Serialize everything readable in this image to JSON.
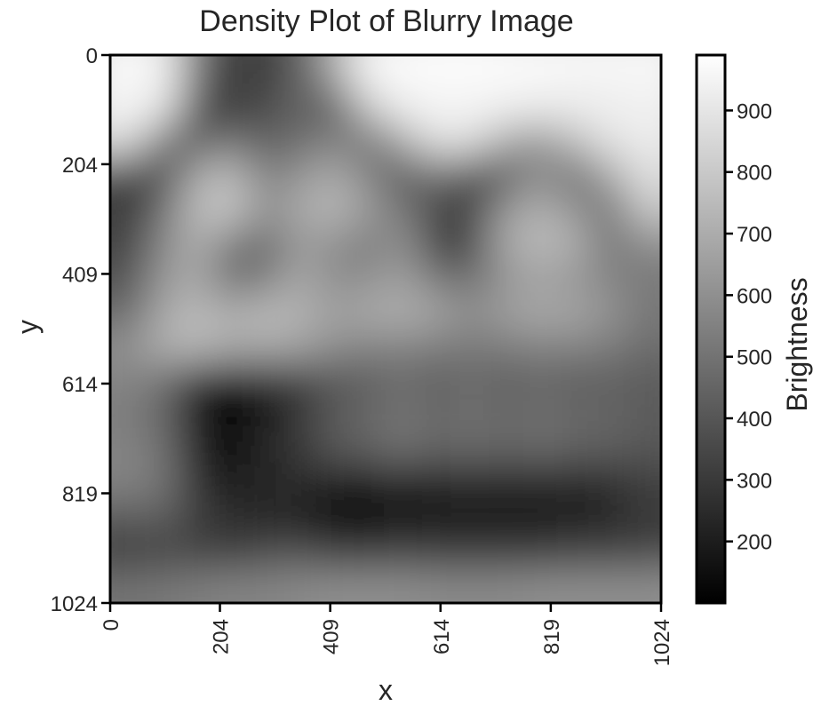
{
  "chart_data": {
    "type": "heatmap",
    "title": "Density Plot of Blurry Image",
    "xlabel": "x",
    "ylabel": "y",
    "xlim": [
      0,
      1024
    ],
    "ylim": [
      1024,
      0
    ],
    "x_ticks": [
      0,
      204,
      409,
      614,
      819,
      1024
    ],
    "y_ticks": [
      0,
      204,
      409,
      614,
      819,
      1024
    ],
    "colorbar": {
      "label": "Brightness",
      "colormap": "gray",
      "range": [
        100,
        990
      ],
      "ticks": [
        200,
        300,
        400,
        500,
        600,
        700,
        800,
        900
      ]
    },
    "grid_res": [
      16,
      16
    ],
    "values": [
      [
        960,
        960,
        520,
        300,
        320,
        420,
        700,
        960,
        970,
        975,
        975,
        970,
        965,
        960,
        960,
        960
      ],
      [
        950,
        930,
        380,
        280,
        360,
        460,
        360,
        820,
        940,
        950,
        950,
        940,
        930,
        920,
        930,
        940
      ],
      [
        880,
        520,
        400,
        520,
        420,
        480,
        560,
        480,
        700,
        900,
        880,
        700,
        620,
        780,
        900,
        920
      ],
      [
        340,
        300,
        700,
        760,
        540,
        620,
        700,
        560,
        380,
        500,
        320,
        400,
        600,
        440,
        700,
        880
      ],
      [
        300,
        480,
        760,
        820,
        600,
        700,
        760,
        640,
        520,
        340,
        320,
        640,
        720,
        620,
        460,
        800
      ],
      [
        320,
        560,
        720,
        520,
        460,
        640,
        600,
        520,
        620,
        300,
        340,
        700,
        760,
        720,
        500,
        600
      ],
      [
        380,
        620,
        700,
        460,
        520,
        700,
        580,
        600,
        660,
        500,
        480,
        620,
        660,
        620,
        560,
        520
      ],
      [
        460,
        680,
        760,
        700,
        760,
        720,
        660,
        700,
        720,
        680,
        600,
        660,
        700,
        680,
        620,
        520
      ],
      [
        600,
        720,
        760,
        700,
        700,
        680,
        600,
        560,
        560,
        540,
        520,
        540,
        560,
        560,
        540,
        480
      ],
      [
        560,
        500,
        220,
        160,
        220,
        300,
        400,
        420,
        480,
        420,
        480,
        420,
        460,
        420,
        440,
        420
      ],
      [
        540,
        460,
        180,
        120,
        200,
        300,
        420,
        460,
        520,
        460,
        500,
        460,
        500,
        460,
        460,
        420
      ],
      [
        560,
        500,
        200,
        150,
        240,
        280,
        420,
        440,
        500,
        440,
        480,
        440,
        480,
        440,
        440,
        400
      ],
      [
        560,
        520,
        260,
        200,
        240,
        260,
        180,
        180,
        220,
        200,
        220,
        220,
        220,
        220,
        240,
        320
      ],
      [
        420,
        440,
        320,
        260,
        240,
        200,
        140,
        160,
        180,
        200,
        200,
        200,
        200,
        220,
        240,
        300
      ],
      [
        300,
        320,
        320,
        300,
        360,
        380,
        300,
        300,
        320,
        300,
        300,
        300,
        300,
        320,
        320,
        340
      ],
      [
        500,
        520,
        540,
        560,
        560,
        580,
        600,
        600,
        600,
        580,
        580,
        580,
        600,
        600,
        600,
        600
      ]
    ]
  }
}
